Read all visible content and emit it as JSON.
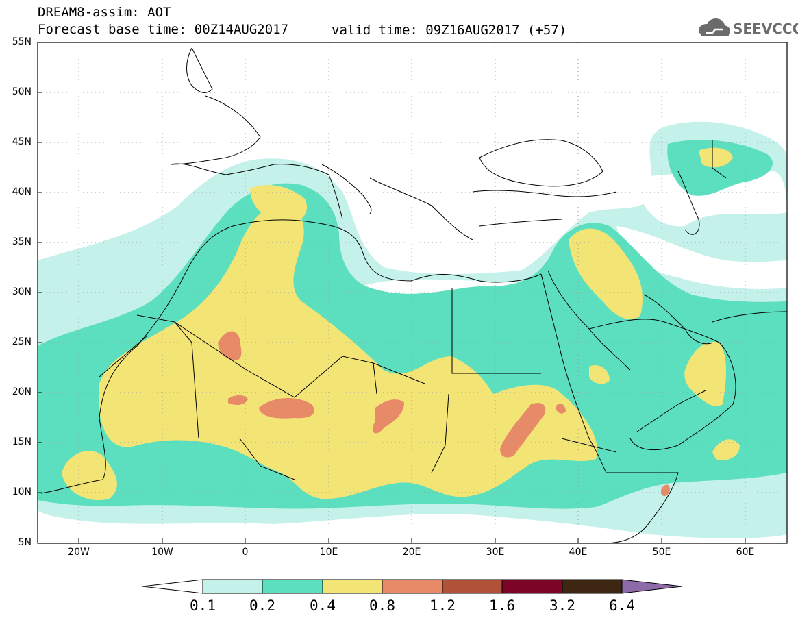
{
  "header": {
    "title": "DREAM8-assim: AOT",
    "forecast_base": "Forecast base time: 00Z14AUG2017",
    "valid_time": "valid time: 09Z16AUG2017 (+57)",
    "logo_text": "SEEVCCC"
  },
  "map": {
    "lon_range": [
      -25,
      65
    ],
    "lat_range": [
      5,
      55
    ],
    "lat_labels": [
      "55N",
      "50N",
      "45N",
      "40N",
      "35N",
      "30N",
      "25N",
      "20N",
      "15N",
      "10N",
      "5N"
    ],
    "lon_labels": [
      "20W",
      "10W",
      "0",
      "10E",
      "20E",
      "30E",
      "40E",
      "50E",
      "60E"
    ],
    "gridlines": "dotted",
    "land_outline_color": "#000000"
  },
  "colorbar": {
    "labels": [
      "0.1",
      "0.2",
      "0.4",
      "0.8",
      "1.2",
      "1.6",
      "3.2",
      "6.4"
    ],
    "colors": [
      "#ffffff",
      "#c4f1e9",
      "#5cdfbf",
      "#f3e476",
      "#e68a68",
      "#b05238",
      "#7c0426",
      "#3e2712",
      "#8d6ba8"
    ]
  }
}
